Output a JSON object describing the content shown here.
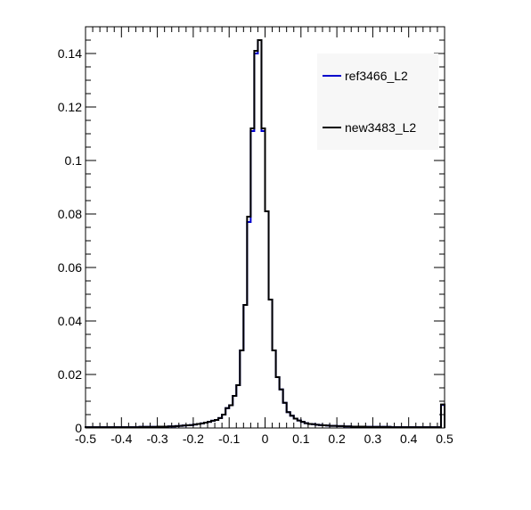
{
  "chart_data": {
    "type": "line",
    "drawstyle": "histogram-steps",
    "xlim": [
      -0.5,
      0.5
    ],
    "ylim": [
      0,
      0.15
    ],
    "xticks": [
      -0.5,
      -0.4,
      -0.3,
      -0.2,
      -0.1,
      0,
      0.1,
      0.2,
      0.3,
      0.4,
      0.5
    ],
    "xtick_labels": [
      "-0.5",
      "-0.4",
      "-0.3",
      "-0.2",
      "-0.1",
      "0",
      "0.1",
      "0.2",
      "0.3",
      "0.4",
      "0.5"
    ],
    "yticks": [
      0,
      0.02,
      0.04,
      0.06,
      0.08,
      0.1,
      0.12,
      0.14
    ],
    "ytick_labels": [
      "0",
      "0.02",
      "0.04",
      "0.06",
      "0.08",
      "0.1",
      "0.12",
      "0.14"
    ],
    "legend_position": "top-right",
    "bin_edges_lo": [
      -0.5,
      -0.49,
      -0.48,
      -0.47,
      -0.46,
      -0.45,
      -0.44,
      -0.43,
      -0.42,
      -0.41,
      -0.4,
      -0.39,
      -0.38,
      -0.37,
      -0.36,
      -0.35,
      -0.34,
      -0.33,
      -0.32,
      -0.31,
      -0.3,
      -0.29,
      -0.28,
      -0.27,
      -0.26,
      -0.25,
      -0.24,
      -0.23,
      -0.22,
      -0.21,
      -0.2,
      -0.19,
      -0.18,
      -0.17,
      -0.16,
      -0.15,
      -0.14,
      -0.13,
      -0.12,
      -0.11,
      -0.1,
      -0.09,
      -0.08,
      -0.07,
      -0.06,
      -0.05,
      -0.04,
      -0.03,
      -0.02,
      -0.01,
      0.0,
      0.01,
      0.02,
      0.03,
      0.04,
      0.05,
      0.06,
      0.07,
      0.08,
      0.09,
      0.1,
      0.11,
      0.12,
      0.13,
      0.14,
      0.15,
      0.16,
      0.17,
      0.18,
      0.19,
      0.2,
      0.21,
      0.22,
      0.23,
      0.24,
      0.25,
      0.26,
      0.27,
      0.28,
      0.29,
      0.3,
      0.31,
      0.32,
      0.33,
      0.34,
      0.35,
      0.36,
      0.37,
      0.38,
      0.39,
      0.4,
      0.41,
      0.42,
      0.43,
      0.44,
      0.45,
      0.46,
      0.47,
      0.48,
      0.49
    ],
    "bin_width": 0.01,
    "series": [
      {
        "name": "ref3466_L2",
        "color": "#0000cc",
        "values": [
          0.0003,
          0.0003,
          0.0003,
          0.0003,
          0.0003,
          0.0003,
          0.0003,
          0.0003,
          0.0003,
          0.0003,
          0.0003,
          0.0003,
          0.0003,
          0.0003,
          0.0003,
          0.0004,
          0.0004,
          0.0004,
          0.0004,
          0.0004,
          0.0005,
          0.0005,
          0.0005,
          0.0006,
          0.0006,
          0.0007,
          0.0008,
          0.0009,
          0.001,
          0.0011,
          0.0013,
          0.0015,
          0.0017,
          0.002,
          0.0023,
          0.0027,
          0.003,
          0.0037,
          0.005,
          0.0074,
          0.0085,
          0.012,
          0.016,
          0.029,
          0.046,
          0.077,
          0.111,
          0.14,
          0.145,
          0.111,
          0.081,
          0.048,
          0.029,
          0.019,
          0.0144,
          0.0094,
          0.0059,
          0.0046,
          0.0035,
          0.0028,
          0.0023,
          0.0018,
          0.0015,
          0.0014,
          0.0012,
          0.0011,
          0.001,
          0.0009,
          0.0008,
          0.0008,
          0.0007,
          0.0007,
          0.0006,
          0.0006,
          0.0005,
          0.0005,
          0.0005,
          0.0005,
          0.0004,
          0.0004,
          0.0004,
          0.0004,
          0.0004,
          0.0004,
          0.0004,
          0.0003,
          0.0003,
          0.0003,
          0.0003,
          0.0003,
          0.0003,
          0.0003,
          0.0003,
          0.0003,
          0.0003,
          0.0003,
          0.0003,
          0.0003,
          0.0003,
          0.0086
        ]
      },
      {
        "name": "new3483_L2",
        "color": "#000000",
        "values": [
          0.0003,
          0.0003,
          0.0003,
          0.0003,
          0.0003,
          0.0003,
          0.0003,
          0.0003,
          0.0003,
          0.0003,
          0.0003,
          0.0003,
          0.0003,
          0.0003,
          0.0003,
          0.0004,
          0.0004,
          0.0004,
          0.0004,
          0.0004,
          0.0005,
          0.0005,
          0.0005,
          0.0006,
          0.0006,
          0.0007,
          0.0008,
          0.0009,
          0.001,
          0.0011,
          0.0013,
          0.0015,
          0.0017,
          0.002,
          0.0023,
          0.0027,
          0.003,
          0.0037,
          0.005,
          0.0074,
          0.0085,
          0.012,
          0.016,
          0.029,
          0.046,
          0.079,
          0.112,
          0.141,
          0.145,
          0.112,
          0.081,
          0.048,
          0.029,
          0.019,
          0.0144,
          0.0094,
          0.0059,
          0.0046,
          0.0035,
          0.0028,
          0.0023,
          0.0018,
          0.0015,
          0.0014,
          0.0012,
          0.0011,
          0.001,
          0.0009,
          0.0008,
          0.0008,
          0.0007,
          0.0007,
          0.0006,
          0.0006,
          0.0005,
          0.0005,
          0.0005,
          0.0005,
          0.0004,
          0.0004,
          0.0004,
          0.0004,
          0.0004,
          0.0004,
          0.0004,
          0.0003,
          0.0003,
          0.0003,
          0.0003,
          0.0003,
          0.0003,
          0.0003,
          0.0003,
          0.0003,
          0.0003,
          0.0003,
          0.0003,
          0.0003,
          0.0003,
          0.0088
        ]
      }
    ]
  }
}
